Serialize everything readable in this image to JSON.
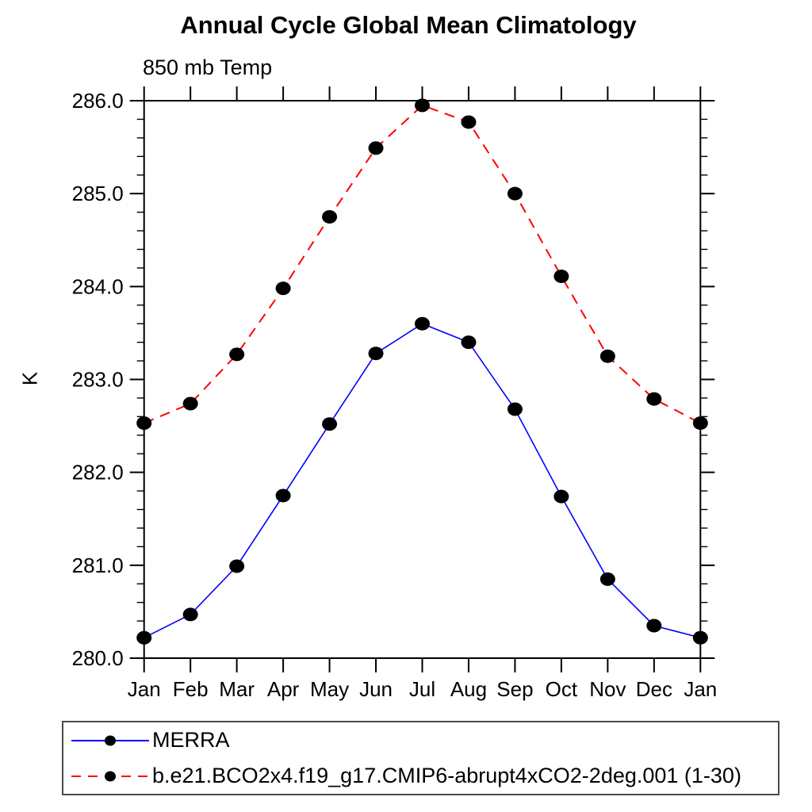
{
  "title": "Annual Cycle Global Mean Climatology",
  "subtitle": "850 mb Temp",
  "ylabel": "K",
  "chart_data": {
    "type": "line",
    "title": "Annual Cycle Global Mean Climatology",
    "subtitle": "850 mb Temp",
    "xlabel": "",
    "ylabel": "K",
    "categories": [
      "Jan",
      "Feb",
      "Mar",
      "Apr",
      "May",
      "Jun",
      "Jul",
      "Aug",
      "Sep",
      "Oct",
      "Nov",
      "Dec",
      "Jan"
    ],
    "ylim": [
      280.0,
      286.0
    ],
    "ytick_step": 1.0,
    "ytick_minor_step": 0.2,
    "ytick_labels": [
      "280.0",
      "281.0",
      "282.0",
      "283.0",
      "284.0",
      "285.0",
      "286.0"
    ],
    "grid": false,
    "frame": "box-with-outward-ticks",
    "legend_position": "bottom-left-box",
    "axis_color": "#000000",
    "series": [
      {
        "name": "MERRA",
        "color": "#0000ff",
        "line_style": "solid",
        "line_width": 1.6,
        "marker": "filled-circle",
        "marker_color": "#000000",
        "values": [
          280.22,
          280.47,
          280.99,
          281.75,
          282.52,
          283.28,
          283.6,
          283.4,
          282.68,
          281.74,
          280.85,
          280.35,
          280.22
        ]
      },
      {
        "name": "b.e21.BCO2x4.f19_g17.CMIP6-abrupt4xCO2-2deg.001 (1-30)",
        "color": "#ff0000",
        "line_style": "dashed",
        "line_width": 2,
        "marker": "filled-circle",
        "marker_color": "#000000",
        "values": [
          282.53,
          282.74,
          283.27,
          283.98,
          284.75,
          285.49,
          285.95,
          285.77,
          285.0,
          284.11,
          283.25,
          282.79,
          282.53
        ]
      }
    ]
  }
}
